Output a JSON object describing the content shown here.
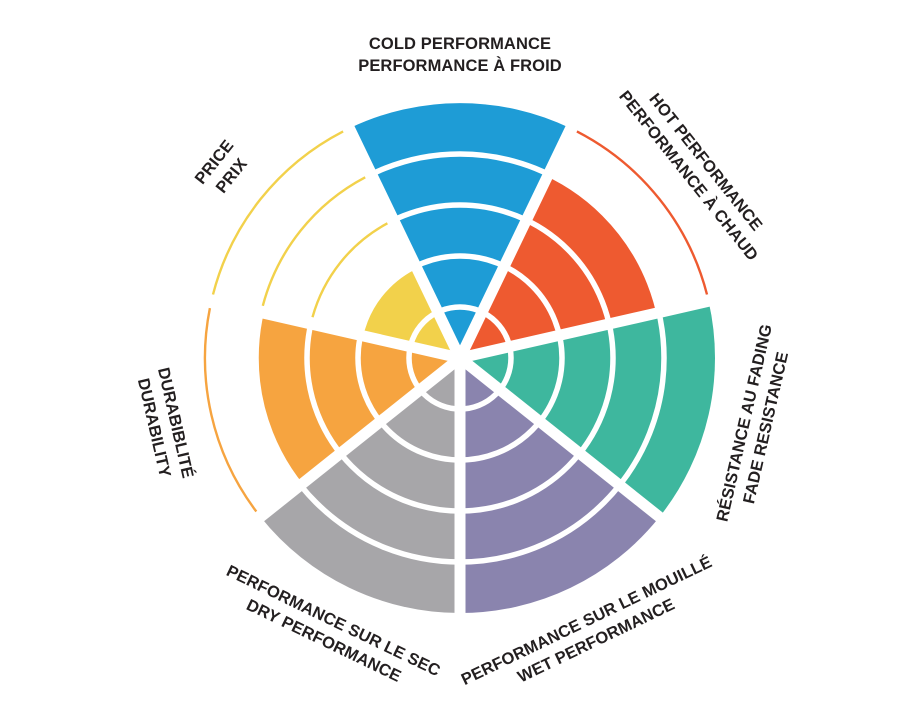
{
  "page": {
    "background_color": "#FFFFFF",
    "title": ""
  },
  "chart_data": {
    "type": "pie",
    "variant": "radial-rating-wheel",
    "title": "",
    "legend_position": "none",
    "grid": "white ring separators between rating bands",
    "rings": 5,
    "value_scale": "0 to 5 filled rings per category",
    "start_angle_deg": -90,
    "direction": "clockwise",
    "unfilled_ring_style": "thin outline arc drawn in the category color at each unfilled ring radius",
    "text_color": "#231F20",
    "gap_color": "#FFFFFF",
    "categories": [
      {
        "id": "cold-performance",
        "label_line1": "COLD PERFORMANCE",
        "label_line2": "PERFORMANCE À FROID",
        "value": 5,
        "color": "#1E9CD6"
      },
      {
        "id": "hot-performance",
        "label_line1": "HOT PERFORMANCE",
        "label_line2": "PERFORMANCE À CHAUD",
        "value": 4,
        "color": "#EE5A30"
      },
      {
        "id": "fade-resistance",
        "label_line1": "RÉSISTANCE AU FADING",
        "label_line2": "FADE RESISTANCE",
        "value": 5,
        "color": "#3EB79E"
      },
      {
        "id": "wet-performance",
        "label_line1": "PERFORMANCE SUR LE MOUILLÉ",
        "label_line2": "WET PERFORMANCE",
        "value": 5,
        "color": "#8A84AE"
      },
      {
        "id": "dry-performance",
        "label_line1": "PERFORMANCE SUR LE SEC",
        "label_line2": "DRY PERFORMANCE",
        "value": 5,
        "color": "#A7A6A9"
      },
      {
        "id": "durability",
        "label_line1": "DURABIBLITÉ",
        "label_line2": "DURABILITY",
        "value": 4,
        "color": "#F6A440"
      },
      {
        "id": "price",
        "label_line1": "PRICE",
        "label_line2": "PRIX",
        "value": 2,
        "color": "#F2D14B"
      }
    ]
  }
}
